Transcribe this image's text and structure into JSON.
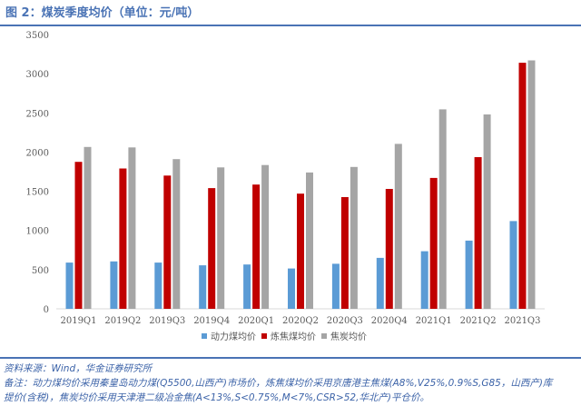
{
  "header": {
    "figure_label": "图 2：",
    "title": "煤炭季度均价（单位：元/吨）"
  },
  "chart_data": {
    "type": "bar",
    "title": "煤炭季度均价（单位：元/吨）",
    "categories": [
      "2019Q1",
      "2019Q2",
      "2019Q3",
      "2019Q4",
      "2020Q1",
      "2020Q2",
      "2020Q3",
      "2020Q4",
      "2021Q1",
      "2021Q2",
      "2021Q3"
    ],
    "series": [
      {
        "name": "动力煤均价",
        "color": "#5b9bd5",
        "values": [
          590,
          605,
          590,
          555,
          565,
          515,
          575,
          650,
          735,
          870,
          1120
        ]
      },
      {
        "name": "炼焦煤均价",
        "color": "#c00000",
        "values": [
          1875,
          1790,
          1700,
          1540,
          1585,
          1470,
          1425,
          1530,
          1670,
          1935,
          3140
        ]
      },
      {
        "name": "焦炭均价",
        "color": "#a5a5a5",
        "values": [
          2065,
          2060,
          1910,
          1805,
          1835,
          1740,
          1810,
          2105,
          2545,
          2480,
          3170
        ]
      }
    ],
    "ylim": [
      0,
      3500
    ],
    "yticks": [
      0,
      500,
      1000,
      1500,
      2000,
      2500,
      3000,
      3500
    ],
    "grid": false,
    "legend_position": "bottom"
  },
  "notes": {
    "source": "资料来源：Wind，华金证券研究所",
    "remark_line1": "备注：动力煤均价采用秦皇岛动力煤(Q5500,山西产)市场价，炼焦煤均价采用京唐港主焦煤(A8%,V25%,0.9%S,G85，山西产)库",
    "remark_line2": "提价(含税)，焦炭均价采用天津港二级冶金焦(A<13%,S<0.75%,M<7%,CSR>52,华北产)平仓价。"
  }
}
